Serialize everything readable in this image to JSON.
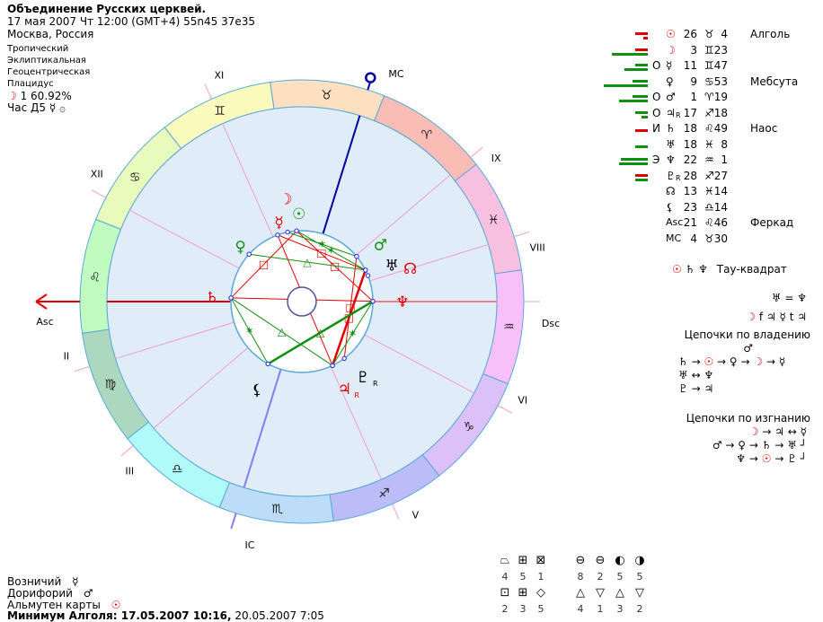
{
  "header": {
    "title": "Объединение Русских церквей.",
    "datetime": "17 мая 2007  Чт  12:00 (GMT+4) 55n45  37e35",
    "place": "Москва, Россия"
  },
  "settings": [
    "Тропический",
    "Эклиптикальная",
    "Геоцентрическая",
    "Плацидус"
  ],
  "moon_phase": {
    "glyph": "☽",
    "text": "1 60.92%"
  },
  "hour": {
    "label": "Час Д5",
    "glyph1": "☿",
    "glyph2": "۞"
  },
  "colors": {
    "red": "#e00000",
    "green": "#109010",
    "ring_border": "#58a8d8",
    "wheel_fill": "#e0ecf8",
    "mc_line": "#0000a0",
    "ic_line": "#8080f0",
    "cusp": "#f0a0c8"
  },
  "ascendant_longitude": 141.77,
  "signs": [
    {
      "glyph": "♈",
      "color": "#f9bdb5"
    },
    {
      "glyph": "♉",
      "color": "#fde0c0"
    },
    {
      "glyph": "♊",
      "color": "#fbfbbd"
    },
    {
      "glyph": "♋",
      "color": "#e8fbbd"
    },
    {
      "glyph": "♌",
      "color": "#c0fbc0"
    },
    {
      "glyph": "♍",
      "color": "#acd8c0"
    },
    {
      "glyph": "♎",
      "color": "#b0fafa"
    },
    {
      "glyph": "♏",
      "color": "#bcdcf8"
    },
    {
      "glyph": "♐",
      "color": "#bcbcf8"
    },
    {
      "glyph": "♑",
      "color": "#dcc0f8"
    },
    {
      "glyph": "♒",
      "color": "#f8c0f8"
    },
    {
      "glyph": "♓",
      "color": "#f8c0e0"
    }
  ],
  "houses": [
    {
      "label": "Asc",
      "lon": 141.77
    },
    {
      "label": "II",
      "lon": 158.8
    },
    {
      "label": "III",
      "lon": 182.3
    },
    {
      "label": "IC",
      "lon": 214.5
    },
    {
      "label": "V",
      "lon": 255.8
    },
    {
      "label": "VI",
      "lon": 293.8
    },
    {
      "label": "Dsc",
      "lon": 321.77
    },
    {
      "label": "VIII",
      "lon": 338.8
    },
    {
      "label": "IX",
      "lon": 2.3
    },
    {
      "label": "MC",
      "lon": 34.5
    },
    {
      "label": "XI",
      "lon": 75.8
    },
    {
      "label": "XII",
      "lon": 113.8
    }
  ],
  "planets": [
    {
      "id": "sun",
      "glyph": "☉",
      "lon": 56.07,
      "color": "#109010",
      "retro": ""
    },
    {
      "id": "moon",
      "glyph": "☽",
      "lon": 63.38,
      "color": "#e00000",
      "retro": ""
    },
    {
      "id": "mercury",
      "glyph": "☿",
      "lon": 71.78,
      "color": "#e00000",
      "retro": ""
    },
    {
      "id": "venus",
      "glyph": "♀",
      "lon": 99.88,
      "color": "#109010",
      "retro": ""
    },
    {
      "id": "mars",
      "glyph": "♂",
      "lon": 1.32,
      "color": "#109010",
      "retro": ""
    },
    {
      "id": "jupiter",
      "glyph": "♃",
      "lon": 257.3,
      "color": "#e00000",
      "retro": "R"
    },
    {
      "id": "saturn",
      "glyph": "♄",
      "lon": 138.82,
      "color": "#e00000",
      "retro": ""
    },
    {
      "id": "uranus",
      "glyph": "♅",
      "lon": 348.13,
      "color": "#000000",
      "retro": ""
    },
    {
      "id": "neptune",
      "glyph": "♆",
      "lon": 322.02,
      "color": "#e00000",
      "retro": ""
    },
    {
      "id": "pluto",
      "glyph": "♇",
      "lon": 268.45,
      "color": "#000000",
      "retro": "R"
    },
    {
      "id": "node",
      "glyph": "☊",
      "lon": 343.23,
      "color": "#e00000",
      "retro": ""
    },
    {
      "id": "lilith",
      "glyph": "⚸",
      "lon": 203.23,
      "color": "#000000",
      "retro": ""
    }
  ],
  "aspects": [
    {
      "a": "saturn",
      "b": "neptune",
      "type": "opposition"
    },
    {
      "a": "mercury",
      "b": "jupiter",
      "type": "opposition"
    },
    {
      "a": "saturn",
      "b": "sun",
      "type": "square"
    },
    {
      "a": "sun",
      "b": "neptune",
      "type": "square"
    },
    {
      "a": "mercury",
      "b": "uranus",
      "type": "square"
    },
    {
      "a": "mars",
      "b": "pluto",
      "type": "square"
    },
    {
      "a": "uranus",
      "b": "jupiter",
      "type": "square"
    },
    {
      "a": "venus",
      "b": "uranus",
      "type": "trine"
    },
    {
      "a": "saturn",
      "b": "jupiter",
      "type": "trine"
    },
    {
      "a": "lilith",
      "b": "neptune",
      "type": "trine"
    },
    {
      "a": "moon",
      "b": "mars",
      "type": "sextile"
    },
    {
      "a": "sun",
      "b": "uranus",
      "type": "sextile"
    },
    {
      "a": "saturn",
      "b": "lilith",
      "type": "sextile"
    },
    {
      "a": "neptune",
      "b": "jupiter",
      "type": "sextile"
    }
  ],
  "positions": [
    {
      "bars": [
        {
          "c": "red",
          "v": 14
        },
        {
          "c": "red",
          "v": 5
        }
      ],
      "mark": "",
      "glyph": "☉",
      "retro": "",
      "deg": "26",
      "sign": "♉",
      "min": "4",
      "star": "Алголь",
      "red": true
    },
    {
      "bars": [
        {
          "c": "red",
          "v": 14
        },
        {
          "c": "green",
          "v": 40
        }
      ],
      "mark": "",
      "glyph": "☽",
      "retro": "",
      "deg": "3",
      "sign": "♊",
      "min": "23",
      "star": "",
      "red": true
    },
    {
      "bars": [
        {
          "c": "green",
          "v": 14
        },
        {
          "c": "green",
          "v": 26
        }
      ],
      "mark": "О",
      "glyph": "☿",
      "retro": "",
      "deg": "11",
      "sign": "♊",
      "min": "47",
      "star": ""
    },
    {
      "bars": [
        {
          "c": "green",
          "v": 17
        },
        {
          "c": "green",
          "v": 49
        }
      ],
      "mark": "",
      "glyph": "♀",
      "retro": "",
      "deg": "9",
      "sign": "♋",
      "min": "53",
      "star": "Мебсута"
    },
    {
      "bars": [
        {
          "c": "green",
          "v": 17
        },
        {
          "c": "green",
          "v": 32
        }
      ],
      "mark": "О",
      "glyph": "♂",
      "retro": "",
      "deg": "1",
      "sign": "♈",
      "min": "19",
      "star": ""
    },
    {
      "bars": [
        {
          "c": "green",
          "v": 14
        },
        {
          "c": "green",
          "v": 7
        }
      ],
      "mark": "О",
      "glyph": "♃",
      "retro": "R",
      "deg": "17",
      "sign": "♐",
      "min": "18",
      "star": ""
    },
    {
      "bars": [
        {
          "c": "red",
          "v": 14
        }
      ],
      "mark": "И",
      "glyph": "♄",
      "retro": "",
      "deg": "18",
      "sign": "♌",
      "min": "49",
      "star": "Наос"
    },
    {
      "bars": [
        {
          "c": "green",
          "v": 14
        }
      ],
      "mark": "",
      "glyph": "♅",
      "retro": "",
      "deg": "18",
      "sign": "♓",
      "min": "8",
      "star": ""
    },
    {
      "bars": [
        {
          "c": "green",
          "v": 30
        },
        {
          "c": "green",
          "v": 32
        }
      ],
      "mark": "Э",
      "glyph": "♆",
      "retro": "",
      "deg": "22",
      "sign": "♒",
      "min": "1",
      "star": ""
    },
    {
      "bars": [
        {
          "c": "red",
          "v": 14
        },
        {
          "c": "green",
          "v": 14
        }
      ],
      "mark": "",
      "glyph": "♇",
      "retro": "R",
      "deg": "28",
      "sign": "♐",
      "min": "27",
      "star": ""
    },
    {
      "bars": [],
      "mark": "",
      "glyph": "☊",
      "retro": "",
      "deg": "13",
      "sign": "♓",
      "min": "14",
      "star": ""
    },
    {
      "bars": [],
      "mark": "",
      "glyph": "⚸",
      "retro": "",
      "deg": "23",
      "sign": "♎",
      "min": "14",
      "star": ""
    },
    {
      "bars": [],
      "mark": "",
      "glyph": "Asc",
      "retro": "",
      "deg": "21",
      "sign": "♌",
      "min": "46",
      "star": "Феркад"
    },
    {
      "bars": [],
      "mark": "",
      "glyph": "MC",
      "retro": "",
      "deg": "4",
      "sign": "♉",
      "min": "30",
      "star": ""
    }
  ],
  "configurations": {
    "glyphs": "☉ ♄ ♆",
    "label": "Тау-квадрат"
  },
  "relations": [
    "♅ = ♆",
    "☽ f ♃  ☿ t ♃"
  ],
  "rulership_chains": {
    "title": "Цепочки по владению",
    "lines": [
      "♂",
      "♄ → ☉ → ♀ → ☽ → ☿",
      "♅ ↔ ♆",
      "♇ → ♃"
    ]
  },
  "exile_chains": {
    "title": "Цепочки по изгнанию",
    "lines": [
      "☽ → ♃ ↔ ☿",
      "♂ → ♀ → ♄ → ♅ ┘",
      "♆ → ☉ → ♇ ┘"
    ]
  },
  "footer": {
    "charioteer_label": "Возничий",
    "charioteer_glyph": "☿",
    "doryphory_label": "Дорифорий",
    "doryphory_glyph": "♂",
    "almuten_label": "Альмутен карты",
    "almuten_glyph": "☉",
    "algol_bold": "Минимум Алголя: 17.05.2007 10:16,",
    "algol_next": "20.05.2007  7:05"
  },
  "stats": {
    "top_left": [
      {
        "glyph": "⏢",
        "n": "4"
      },
      {
        "glyph": "⊞",
        "n": "5"
      },
      {
        "glyph": "⊠",
        "n": "1"
      }
    ],
    "top_right": [
      {
        "glyph": "⊖",
        "n": "8"
      },
      {
        "glyph": "⊖",
        "n": "2"
      },
      {
        "glyph": "◐",
        "n": "5"
      },
      {
        "glyph": "◑",
        "n": "5"
      }
    ],
    "bottom_left": [
      {
        "glyph": "⊡",
        "n": "2"
      },
      {
        "glyph": "⊞",
        "n": "3"
      },
      {
        "glyph": "◇",
        "n": "5"
      }
    ],
    "bottom_right": [
      {
        "glyph": "△",
        "n": "4"
      },
      {
        "glyph": "▽",
        "n": "1"
      },
      {
        "glyph": "△",
        "n": "3"
      },
      {
        "glyph": "▽",
        "n": "2"
      }
    ]
  }
}
